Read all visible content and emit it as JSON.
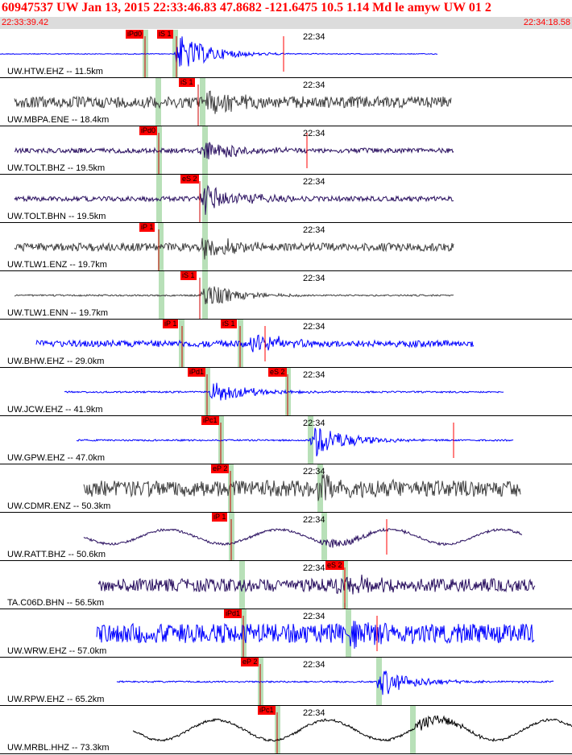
{
  "header": {
    "title": "60947537 UW Jan 13, 2015 22:33:46.83   47.8682 -121.6475 10.5 1.14 Md le amyw UW 01   2",
    "time_start": "22:33:39.42",
    "time_end": "22:34:18.58"
  },
  "colors": {
    "title": "#ff0000",
    "pick": "#ff0000",
    "window": "#b8e0b8",
    "blue": "#0000ff",
    "gray": "#404040",
    "purple": "#2a1060",
    "black": "#000000"
  },
  "traces": [
    {
      "label": "UW.HTW.EHZ -- 11.5km",
      "time_mark": "22:34",
      "color": "blue",
      "style": "step",
      "start": 0,
      "end": 543,
      "amp": 1,
      "burst_at": 222,
      "burst_amp": 24,
      "picks": [
        {
          "text": "iPd0",
          "at": 180
        },
        {
          "text": "iS 1",
          "at": 219
        }
      ],
      "windows": [
        180,
        217
      ],
      "red_lines": [
        352
      ]
    },
    {
      "label": "UW.MBPA.ENE -- 18.4km",
      "time_mark": "22:34",
      "color": "gray",
      "style": "noise",
      "start": 18,
      "end": 560,
      "amp": 7,
      "burst_at": 255,
      "burst_amp": 14,
      "picks": [
        {
          "text": "iS 1",
          "at": 246
        }
      ],
      "windows": [
        196,
        251
      ],
      "red_lines": []
    },
    {
      "label": "UW.TOLT.BHZ -- 19.5km",
      "time_mark": "22:34",
      "color": "purple",
      "style": "noise",
      "start": 18,
      "end": 563,
      "amp": 3,
      "burst_at": 254,
      "burst_amp": 15,
      "picks": [
        {
          "text": "iPd0",
          "at": 197
        }
      ],
      "windows": [
        197,
        254
      ],
      "red_lines": [
        381
      ]
    },
    {
      "label": "UW.TOLT.BHN -- 19.5km",
      "time_mark": "22:34",
      "color": "purple",
      "style": "noise",
      "start": 18,
      "end": 563,
      "amp": 3,
      "burst_at": 254,
      "burst_amp": 20,
      "picks": [
        {
          "text": "eS 2",
          "at": 248
        }
      ],
      "windows": [
        197,
        254
      ],
      "red_lines": []
    },
    {
      "label": "UW.TLW1.ENZ -- 19.7km",
      "time_mark": "22:34",
      "color": "gray",
      "style": "noise",
      "start": 18,
      "end": 563,
      "amp": 5,
      "burst_at": 254,
      "burst_amp": 14,
      "picks": [
        {
          "text": "iP 1",
          "at": 197
        }
      ],
      "windows": [
        199,
        254
      ],
      "red_lines": []
    },
    {
      "label": "UW.TLW1.ENN -- 19.7km",
      "time_mark": "22:34",
      "color": "gray",
      "style": "noise",
      "start": 18,
      "end": 563,
      "amp": 1,
      "burst_at": 254,
      "burst_amp": 16,
      "picks": [
        {
          "text": "iS 1",
          "at": 248
        }
      ],
      "windows": [
        200,
        254
      ],
      "red_lines": []
    },
    {
      "label": "UW.BHW.EHZ -- 29.0km",
      "time_mark": "22:34",
      "color": "blue",
      "style": "noise",
      "start": 45,
      "end": 588,
      "amp": 4,
      "burst_at": 314,
      "burst_amp": 13,
      "picks": [
        {
          "text": "iP 1",
          "at": 226
        },
        {
          "text": "iS 1",
          "at": 298
        }
      ],
      "windows": [
        225,
        298
      ],
      "red_lines": [
        329
      ]
    },
    {
      "label": "UW.JCW.EHZ -- 41.9km",
      "time_mark": "22:34",
      "color": "blue",
      "style": "noise",
      "start": 80,
      "end": 625,
      "amp": 1,
      "burst_at": 265,
      "burst_amp": 15,
      "picks": [
        {
          "text": "iPd1",
          "at": 257
        },
        {
          "text": "eS 2",
          "at": 357
        }
      ],
      "windows": [
        257,
        357
      ],
      "red_lines": []
    },
    {
      "label": "UW.GPW.EHZ -- 47.0km",
      "time_mark": "22:34",
      "color": "blue",
      "style": "noise",
      "start": 95,
      "end": 637,
      "amp": 1,
      "burst_at": 390,
      "burst_amp": 22,
      "picks": [
        {
          "text": "iPc1",
          "at": 274
        }
      ],
      "windows": [
        274,
        385
      ],
      "red_lines": [
        563
      ]
    },
    {
      "label": "UW.CDMR.ENZ -- 50.3km",
      "time_mark": "22:34",
      "color": "gray",
      "style": "noise",
      "start": 104,
      "end": 646,
      "amp": 10,
      "burst_at": 398,
      "burst_amp": 16,
      "picks": [
        {
          "text": "eP 2",
          "at": 286
        }
      ],
      "windows": [
        286,
        397
      ],
      "red_lines": []
    },
    {
      "label": "UW.RATT.BHZ -- 50.6km",
      "time_mark": "22:34",
      "color": "purple",
      "style": "wave",
      "start": 104,
      "end": 648,
      "amp": 10,
      "burst_at": 402,
      "burst_amp": 8,
      "picks": [
        {
          "text": "iP 1",
          "at": 287
        }
      ],
      "windows": [
        287,
        402
      ],
      "red_lines": [
        480
      ]
    },
    {
      "label": "TA.C06D.BHN -- 56.5km",
      "time_mark": "22:34",
      "color": "purple",
      "style": "noise",
      "start": 122,
      "end": 664,
      "amp": 8,
      "burst_at": 420,
      "burst_amp": 12,
      "picks": [
        {
          "text": "eS 2",
          "at": 428
        }
      ],
      "windows": [
        300,
        428
      ],
      "red_lines": [
        428
      ]
    },
    {
      "label": "UW.WRW.EHZ -- 57.0km",
      "time_mark": "22:34",
      "color": "blue",
      "style": "noise",
      "start": 120,
      "end": 663,
      "amp": 12,
      "burst_at": 430,
      "burst_amp": 10,
      "picks": [
        {
          "text": "iPd1",
          "at": 302
        }
      ],
      "windows": [
        302,
        432
      ],
      "red_lines": [
        468
      ]
    },
    {
      "label": "UW.RPW.EHZ -- 65.2km",
      "time_mark": "22:34",
      "color": "blue",
      "style": "noise",
      "start": 145,
      "end": 687,
      "amp": 1,
      "burst_at": 473,
      "burst_amp": 18,
      "picks": [
        {
          "text": "eP 2",
          "at": 323
        }
      ],
      "windows": [
        323,
        470
      ],
      "red_lines": []
    },
    {
      "label": "UW.MRBL.HHZ -- 73.3km",
      "time_mark": "22:34",
      "color": "black",
      "style": "wave",
      "start": 165,
      "end": 710,
      "amp": 14,
      "burst_at": 520,
      "burst_amp": 10,
      "picks": [
        {
          "text": "iPc1",
          "at": 344
        }
      ],
      "windows": [
        344,
        512
      ],
      "red_lines": []
    }
  ]
}
